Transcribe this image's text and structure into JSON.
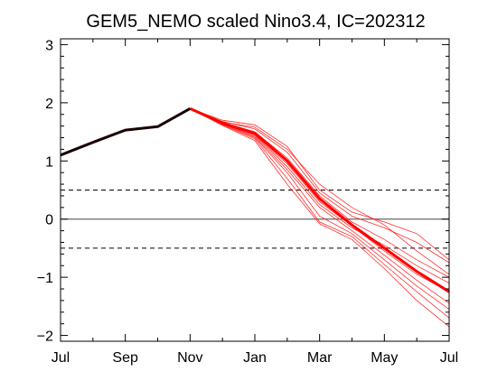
{
  "chart_data": {
    "type": "line",
    "title": "GEM5_NEMO scaled Nino3.4, IC=202312",
    "xlabel": "",
    "ylabel": "",
    "x_tick_labels": [
      "Jul",
      "Sep",
      "Nov",
      "Jan",
      "Mar",
      "May",
      "Jul"
    ],
    "x_tick_positions": [
      0,
      2,
      4,
      6,
      8,
      10,
      12
    ],
    "xlim": [
      0,
      12
    ],
    "ylim": [
      -2.1,
      3.1
    ],
    "y_ticks": [
      3,
      2,
      1,
      0,
      -1,
      -2
    ],
    "y_tick_labels": [
      "3",
      "2",
      "1",
      "0",
      "−1",
      "−2"
    ],
    "reference_lines": [
      {
        "y": 0,
        "style": "solid"
      },
      {
        "y": 0.5,
        "style": "dashed"
      },
      {
        "y": -0.5,
        "style": "dashed"
      }
    ],
    "grid": false,
    "observed": {
      "color": "#1a0000",
      "x": [
        0,
        1,
        2,
        3,
        4
      ],
      "y": [
        1.1,
        1.32,
        1.53,
        1.59,
        1.9
      ]
    },
    "ensemble_mean": {
      "color": "#ff0000",
      "x": [
        4,
        5,
        6,
        7,
        8,
        9,
        10,
        11,
        12
      ],
      "y": [
        1.9,
        1.65,
        1.48,
        1.0,
        0.35,
        -0.1,
        -0.5,
        -0.9,
        -1.25
      ]
    },
    "members": [
      {
        "x": [
          4,
          5,
          6,
          7,
          8,
          9,
          10,
          11,
          12
        ],
        "y": [
          1.9,
          1.7,
          1.62,
          1.25,
          0.5,
          0.12,
          -0.05,
          -0.25,
          -0.7
        ]
      },
      {
        "x": [
          4,
          5,
          6,
          7,
          8,
          9,
          10,
          11,
          12
        ],
        "y": [
          1.9,
          1.68,
          1.55,
          1.15,
          0.45,
          0.05,
          -0.15,
          -0.4,
          -0.75
        ]
      },
      {
        "x": [
          4,
          5,
          6,
          7,
          8,
          9,
          10,
          11,
          12
        ],
        "y": [
          1.9,
          1.66,
          1.5,
          1.05,
          0.4,
          -0.05,
          -0.35,
          -0.7,
          -1.0
        ]
      },
      {
        "x": [
          4,
          5,
          6,
          7,
          8,
          9,
          10,
          11,
          12
        ],
        "y": [
          1.9,
          1.65,
          1.45,
          0.95,
          0.3,
          -0.12,
          -0.55,
          -0.95,
          -1.25
        ]
      },
      {
        "x": [
          4,
          5,
          6,
          7,
          8,
          9,
          10,
          11,
          12
        ],
        "y": [
          1.9,
          1.64,
          1.42,
          0.85,
          0.2,
          -0.2,
          -0.62,
          -1.05,
          -1.45
        ]
      },
      {
        "x": [
          4,
          5,
          6,
          7,
          8,
          9,
          10,
          11,
          12
        ],
        "y": [
          1.9,
          1.63,
          1.4,
          0.8,
          0.05,
          -0.25,
          -0.7,
          -1.15,
          -1.55
        ]
      },
      {
        "x": [
          4,
          5,
          6,
          7,
          8,
          9,
          10,
          11,
          12
        ],
        "y": [
          1.9,
          1.62,
          1.38,
          0.7,
          -0.05,
          -0.3,
          -0.78,
          -1.25,
          -1.7
        ]
      },
      {
        "x": [
          4,
          5,
          6,
          7,
          8,
          9,
          10,
          11,
          12
        ],
        "y": [
          1.9,
          1.61,
          1.35,
          0.6,
          -0.08,
          -0.35,
          -0.85,
          -1.4,
          -1.85
        ]
      },
      {
        "x": [
          4,
          5,
          6,
          7,
          8,
          9,
          10,
          11,
          12
        ],
        "y": [
          1.9,
          1.67,
          1.58,
          1.2,
          0.6,
          0.2,
          -0.1,
          -0.55,
          -0.95
        ]
      },
      {
        "x": [
          4,
          5,
          6,
          7,
          8,
          9,
          10,
          11,
          12
        ],
        "y": [
          1.9,
          1.64,
          1.44,
          0.9,
          0.25,
          -0.15,
          -0.45,
          -0.8,
          -1.1
        ]
      }
    ]
  }
}
